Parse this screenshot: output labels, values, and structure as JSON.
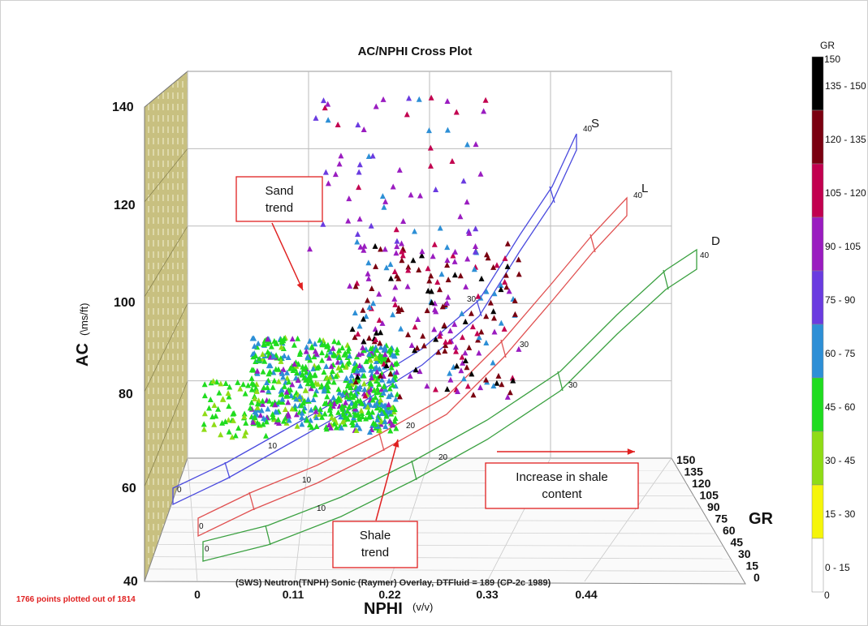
{
  "chart_data": {
    "type": "scatter",
    "title": "AC/NPHI Cross Plot",
    "y_axis": {
      "label": "AC",
      "unit": "(\\ms/ft)",
      "range": [
        40,
        140
      ],
      "ticks": [
        "140",
        "120",
        "100",
        "80",
        "60",
        "40"
      ]
    },
    "x_axis": {
      "label": "NPHI",
      "unit": "(v/v)",
      "range": [
        0,
        0.44
      ],
      "ticks": [
        "0",
        "0.11",
        "0.22",
        "0.33",
        "0.44"
      ]
    },
    "z_axis": {
      "label": "GR",
      "range": [
        0,
        150
      ],
      "ticks": [
        "150",
        "135",
        "120",
        "105",
        "90",
        "75",
        "60",
        "45",
        "30",
        "15",
        "0"
      ]
    },
    "color_legend": {
      "title": "GR",
      "max_label": "150",
      "min_label": "0",
      "bins": [
        {
          "label": "135 - 150",
          "color": "#000000"
        },
        {
          "label": "120 - 135",
          "color": "#7a0010"
        },
        {
          "label": "105 - 120",
          "color": "#c2004f"
        },
        {
          "label": "90 - 105",
          "color": "#9a1cc0"
        },
        {
          "label": "75 - 90",
          "color": "#6a3be0"
        },
        {
          "label": "60 - 75",
          "color": "#2d8fd6"
        },
        {
          "label": "45 - 60",
          "color": "#1fdc1f"
        },
        {
          "label": "30 - 45",
          "color": "#8fdc16"
        },
        {
          "label": "15 - 30",
          "color": "#f5f50a"
        },
        {
          "label": "0 - 15",
          "color": "#ffffff"
        }
      ]
    },
    "overlay_curves": [
      {
        "name": "S",
        "color": "#4a4ade",
        "ticks": [
          "0",
          "10",
          "20",
          "30",
          "40"
        ]
      },
      {
        "name": "L",
        "color": "#e05050",
        "ticks": [
          "0",
          "10",
          "20",
          "30",
          "40"
        ]
      },
      {
        "name": "D",
        "color": "#3aa040",
        "ticks": [
          "0",
          "10",
          "20",
          "30",
          "40"
        ]
      }
    ],
    "overlay_note": "(SWS) Neutron(TNPH) Sonic (Raymer) Overlay, DTFluid = 189 (CP-2c 1989)",
    "points_note": "1766 points plotted out of 1814",
    "grid": true
  },
  "annotations": {
    "sand_trend": "Sand\ntrend",
    "shale_trend": "Shale\ntrend",
    "increase_shale": "Increase in shale\ncontent"
  }
}
